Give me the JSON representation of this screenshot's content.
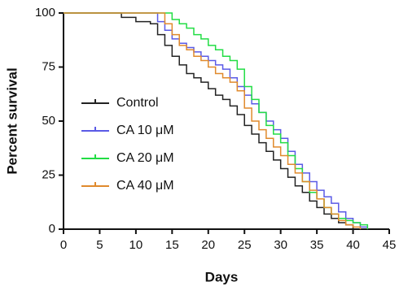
{
  "chart_data": {
    "type": "step",
    "xlabel": "Days",
    "ylabel": "Percent survival",
    "xlim": [
      0,
      45
    ],
    "xticks": [
      0,
      5,
      10,
      15,
      20,
      25,
      30,
      35,
      40,
      45
    ],
    "ylim": [
      0,
      100
    ],
    "yticks": [
      0,
      25,
      50,
      75,
      100
    ],
    "legend": "center-left",
    "series": [
      {
        "name": "Control",
        "color": "#222222",
        "x": [
          0,
          8,
          10,
          12,
          13,
          14,
          15,
          16,
          17,
          18,
          19,
          20,
          21,
          22,
          23,
          24,
          25,
          26,
          27,
          28,
          29,
          30,
          31,
          32,
          33,
          34,
          35,
          36,
          37,
          38,
          39,
          40
        ],
        "values": [
          100,
          98,
          96,
          95,
          90,
          85,
          80,
          76,
          72,
          70,
          68,
          65,
          62,
          60,
          57,
          53,
          48,
          44,
          40,
          36,
          32,
          28,
          24,
          20,
          17,
          13,
          10,
          7,
          5,
          3,
          2,
          0
        ]
      },
      {
        "name": "CA 10 μM",
        "color": "#5a5ae6",
        "x": [
          0,
          13,
          14,
          15,
          16,
          17,
          18,
          19,
          20,
          21,
          22,
          23,
          24,
          25,
          26,
          27,
          28,
          29,
          30,
          31,
          32,
          33,
          34,
          35,
          36,
          37,
          38,
          39,
          40,
          41,
          42
        ],
        "values": [
          100,
          96,
          92,
          88,
          86,
          84,
          82,
          80,
          78,
          76,
          74,
          70,
          66,
          62,
          58,
          54,
          50,
          46,
          42,
          36,
          30,
          26,
          22,
          18,
          15,
          12,
          8,
          5,
          3,
          1,
          0
        ]
      },
      {
        "name": "CA 20 μM",
        "color": "#22dd44",
        "x": [
          0,
          15,
          16,
          17,
          18,
          19,
          20,
          21,
          22,
          23,
          24,
          25,
          26,
          27,
          28,
          29,
          30,
          31,
          32,
          33,
          34,
          35,
          36,
          37,
          38,
          39,
          40,
          41,
          42
        ],
        "values": [
          100,
          97,
          95,
          93,
          90,
          88,
          85,
          83,
          80,
          78,
          74,
          66,
          60,
          54,
          48,
          44,
          40,
          34,
          28,
          22,
          17,
          14,
          10,
          7,
          5,
          4,
          3,
          2,
          0
        ]
      },
      {
        "name": "CA 40 μM",
        "color": "#e08a2c",
        "x": [
          0,
          14,
          15,
          16,
          17,
          18,
          19,
          20,
          21,
          22,
          23,
          24,
          25,
          26,
          27,
          28,
          29,
          30,
          31,
          32,
          33,
          34,
          35,
          36,
          37,
          38,
          39,
          40,
          41
        ],
        "values": [
          100,
          95,
          90,
          85,
          83,
          80,
          78,
          75,
          72,
          70,
          68,
          64,
          56,
          50,
          46,
          42,
          38,
          34,
          30,
          26,
          22,
          18,
          14,
          10,
          7,
          4,
          2,
          1,
          0
        ]
      }
    ]
  }
}
